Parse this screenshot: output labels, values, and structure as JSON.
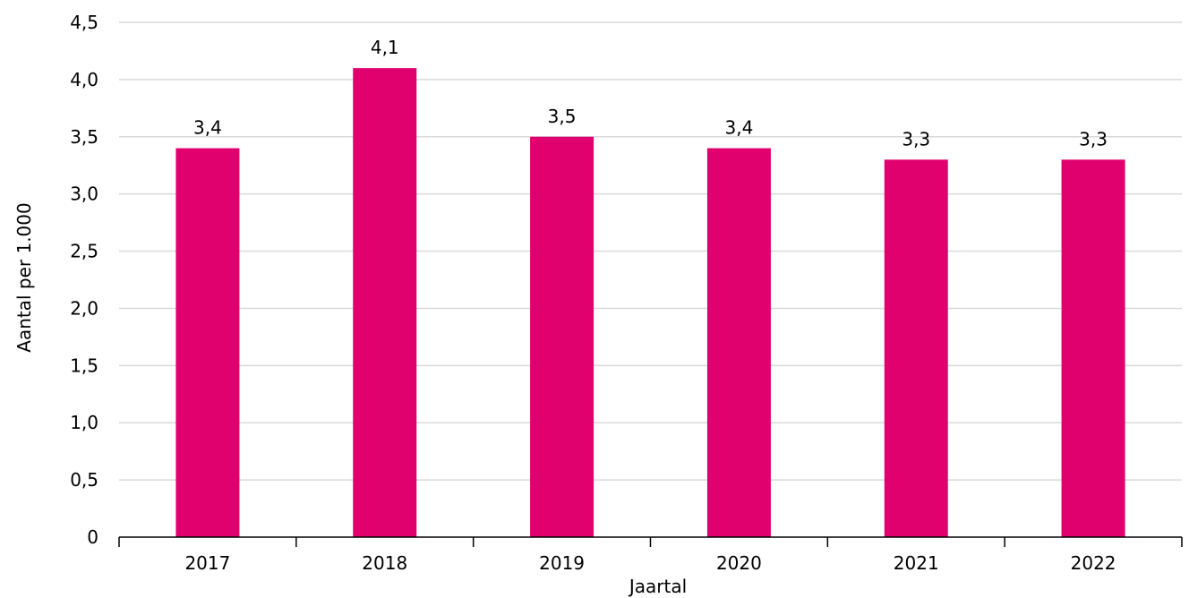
{
  "chart_data": {
    "type": "bar",
    "categories": [
      "2017",
      "2018",
      "2019",
      "2020",
      "2021",
      "2022"
    ],
    "values": [
      3.4,
      4.1,
      3.5,
      3.4,
      3.3,
      3.3
    ],
    "data_labels": [
      "3,4",
      "4,1",
      "3,5",
      "3,4",
      "3,3",
      "3,3"
    ],
    "xlabel": "Jaartal",
    "ylabel": "Aantal per 1.000",
    "ylim": [
      0,
      4.5
    ],
    "yticks": [
      0,
      0.5,
      1.0,
      1.5,
      2.0,
      2.5,
      3.0,
      3.5,
      4.0,
      4.5
    ],
    "ytick_labels": [
      "0",
      "0,5",
      "1,0",
      "1,5",
      "2,0",
      "2,5",
      "3,0",
      "3,5",
      "4,0",
      "4,5"
    ],
    "grid": true,
    "legend": "none",
    "colors": {
      "bar": "#e0006e"
    }
  }
}
